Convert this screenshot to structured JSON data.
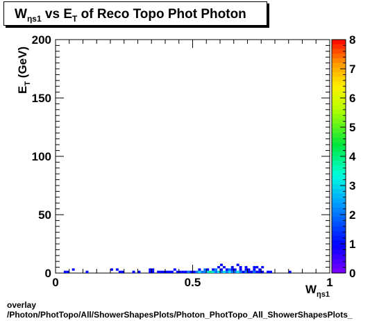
{
  "chart_data": {
    "type": "heatmap",
    "title": {
      "main": "W",
      "main_sub": "ηs1",
      "vs": " vs E",
      "vs_sub": "T",
      "rest": " of Reco Topo Phot Photon"
    },
    "xlabel": {
      "main": "W",
      "sub": "ηs1"
    },
    "ylabel": {
      "main": "E",
      "sub": "T",
      "rest": " (GeV)"
    },
    "xlim": [
      0,
      1
    ],
    "ylim": [
      0,
      200
    ],
    "zlim": [
      0,
      8
    ],
    "x_tick_labels": [
      {
        "value": 0,
        "label": "0"
      },
      {
        "value": 0.5,
        "label": "0.5"
      },
      {
        "value": 1,
        "label": "1"
      }
    ],
    "y_tick_labels": [
      {
        "value": 0,
        "label": "0"
      },
      {
        "value": 50,
        "label": "50"
      },
      {
        "value": 100,
        "label": "100"
      },
      {
        "value": 150,
        "label": "150"
      },
      {
        "value": 200,
        "label": "200"
      }
    ],
    "z_tick_labels": [
      "0",
      "1",
      "2",
      "3",
      "4",
      "5",
      "6",
      "7",
      "8"
    ],
    "x_bin_width": 0.01,
    "y_bin_width": 2,
    "bins": [
      [
        0.03,
        0,
        1
      ],
      [
        0.04,
        0,
        1
      ],
      [
        0.06,
        2,
        1
      ],
      [
        0.11,
        0,
        1
      ],
      [
        0.2,
        2,
        1
      ],
      [
        0.22,
        2,
        1
      ],
      [
        0.23,
        0,
        1
      ],
      [
        0.24,
        0,
        1
      ],
      [
        0.28,
        0,
        1
      ],
      [
        0.3,
        0,
        1
      ],
      [
        0.34,
        0,
        1
      ],
      [
        0.35,
        0,
        1
      ],
      [
        0.34,
        2,
        1
      ],
      [
        0.35,
        2,
        1
      ],
      [
        0.37,
        0,
        1
      ],
      [
        0.38,
        0,
        1
      ],
      [
        0.39,
        0,
        1
      ],
      [
        0.4,
        0,
        1
      ],
      [
        0.41,
        0,
        1
      ],
      [
        0.42,
        0,
        1
      ],
      [
        0.43,
        2,
        1
      ],
      [
        0.44,
        0,
        1
      ],
      [
        0.45,
        0,
        1
      ],
      [
        0.46,
        0,
        1
      ],
      [
        0.47,
        0,
        1
      ],
      [
        0.48,
        0,
        2
      ],
      [
        0.49,
        0,
        1
      ],
      [
        0.5,
        0,
        1
      ],
      [
        0.51,
        0,
        2
      ],
      [
        0.52,
        0,
        3
      ],
      [
        0.53,
        0,
        2
      ],
      [
        0.54,
        0,
        2
      ],
      [
        0.55,
        0,
        3
      ],
      [
        0.56,
        0,
        4
      ],
      [
        0.57,
        0,
        3
      ],
      [
        0.58,
        0,
        2
      ],
      [
        0.59,
        0,
        3
      ],
      [
        0.6,
        0,
        2
      ],
      [
        0.61,
        0,
        3
      ],
      [
        0.62,
        0,
        2
      ],
      [
        0.63,
        0,
        3
      ],
      [
        0.64,
        0,
        2
      ],
      [
        0.65,
        0,
        2
      ],
      [
        0.66,
        0,
        3
      ],
      [
        0.67,
        0,
        2
      ],
      [
        0.68,
        0,
        1
      ],
      [
        0.69,
        0,
        2
      ],
      [
        0.7,
        0,
        1
      ],
      [
        0.71,
        0,
        1
      ],
      [
        0.72,
        0,
        2
      ],
      [
        0.73,
        0,
        1
      ],
      [
        0.74,
        0,
        1
      ],
      [
        0.75,
        0,
        1
      ],
      [
        0.77,
        0,
        1
      ],
      [
        0.78,
        0,
        1
      ],
      [
        0.85,
        0,
        1
      ],
      [
        0.52,
        2,
        1
      ],
      [
        0.54,
        2,
        2
      ],
      [
        0.55,
        2,
        1
      ],
      [
        0.57,
        2,
        1
      ],
      [
        0.58,
        2,
        2
      ],
      [
        0.6,
        2,
        1
      ],
      [
        0.62,
        2,
        1
      ],
      [
        0.63,
        2,
        2
      ],
      [
        0.64,
        2,
        1
      ],
      [
        0.65,
        2,
        1
      ],
      [
        0.67,
        2,
        1
      ],
      [
        0.69,
        2,
        1
      ],
      [
        0.7,
        2,
        1
      ],
      [
        0.72,
        2,
        1
      ],
      [
        0.74,
        2,
        1
      ],
      [
        0.59,
        4,
        1
      ],
      [
        0.61,
        4,
        1
      ],
      [
        0.64,
        4,
        1
      ],
      [
        0.67,
        4,
        1
      ],
      [
        0.69,
        4,
        1
      ],
      [
        0.72,
        4,
        1
      ],
      [
        0.73,
        4,
        1
      ],
      [
        0.75,
        4,
        1
      ],
      [
        0.6,
        6,
        1
      ],
      [
        0.66,
        6,
        1
      ]
    ]
  },
  "footer": {
    "line1": "overlay",
    "line2": "/Photon/PhotTopo/All/ShowerShapesPlots/Photon_PhotTopo_All_ShowerShapesPlots_"
  }
}
